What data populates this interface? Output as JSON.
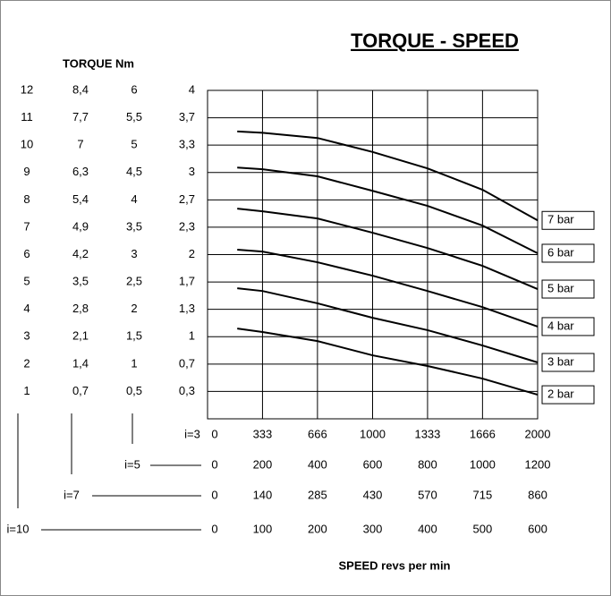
{
  "chart_data": {
    "type": "line",
    "title": "TORQUE - SPEED",
    "y_axis_label": "TORQUE Nm",
    "x_axis_label": "SPEED revs per min",
    "ylim": [
      0,
      12
    ],
    "yticks": [
      1,
      2,
      3,
      4,
      5,
      6,
      7,
      8,
      9,
      10,
      11,
      12
    ],
    "torque_columns": [
      [
        "0,7",
        "1,4",
        "2,1",
        "2,8",
        "3,5",
        "4,2",
        "4,9",
        "5,4",
        "6,3",
        "7",
        "7,7",
        "8,4"
      ],
      [
        "0,5",
        "1",
        "1,5",
        "2",
        "2,5",
        "3",
        "3,5",
        "4",
        "4,5",
        "5",
        "5,5",
        "6"
      ],
      [
        "0,3",
        "0,7",
        "1",
        "1,3",
        "1,7",
        "2",
        "2,3",
        "2,7",
        "3",
        "3,3",
        "3,7",
        "4"
      ]
    ],
    "xlim": [
      0,
      2000
    ],
    "xticks": [
      0,
      333,
      666,
      1000,
      1333,
      1666,
      2000
    ],
    "xticks_ratio": "i=3",
    "alt_x_scales": [
      {
        "ratio": "i=5",
        "ticks": [
          "0",
          "200",
          "400",
          "600",
          "800",
          "1000",
          "1200"
        ]
      },
      {
        "ratio": "i=7",
        "ticks": [
          "0",
          "140",
          "285",
          "430",
          "570",
          "715",
          "860"
        ]
      },
      {
        "ratio": "i=10",
        "ticks": [
          "0",
          "100",
          "200",
          "300",
          "400",
          "500",
          "600"
        ]
      }
    ],
    "x": [
      180,
      333,
      666,
      1000,
      1333,
      1666,
      2000
    ],
    "series": [
      {
        "name": "7 bar",
        "color": "#000000",
        "values": [
          10.5,
          10.45,
          10.26,
          9.75,
          9.15,
          8.37,
          7.25
        ]
      },
      {
        "name": "6 bar",
        "color": "#000000",
        "values": [
          9.18,
          9.12,
          8.86,
          8.33,
          7.78,
          7.06,
          6.05
        ]
      },
      {
        "name": "5 bar",
        "color": "#000000",
        "values": [
          7.68,
          7.58,
          7.32,
          6.8,
          6.24,
          5.59,
          4.74
        ]
      },
      {
        "name": "4 bar",
        "color": "#000000",
        "values": [
          6.18,
          6.11,
          5.72,
          5.23,
          4.67,
          4.08,
          3.37
        ]
      },
      {
        "name": "3 bar",
        "color": "#000000",
        "values": [
          4.77,
          4.67,
          4.22,
          3.69,
          3.24,
          2.68,
          2.06
        ]
      },
      {
        "name": "2 bar",
        "color": "#000000",
        "values": [
          3.3,
          3.17,
          2.84,
          2.32,
          1.93,
          1.47,
          0.88
        ]
      }
    ],
    "grid": true
  }
}
